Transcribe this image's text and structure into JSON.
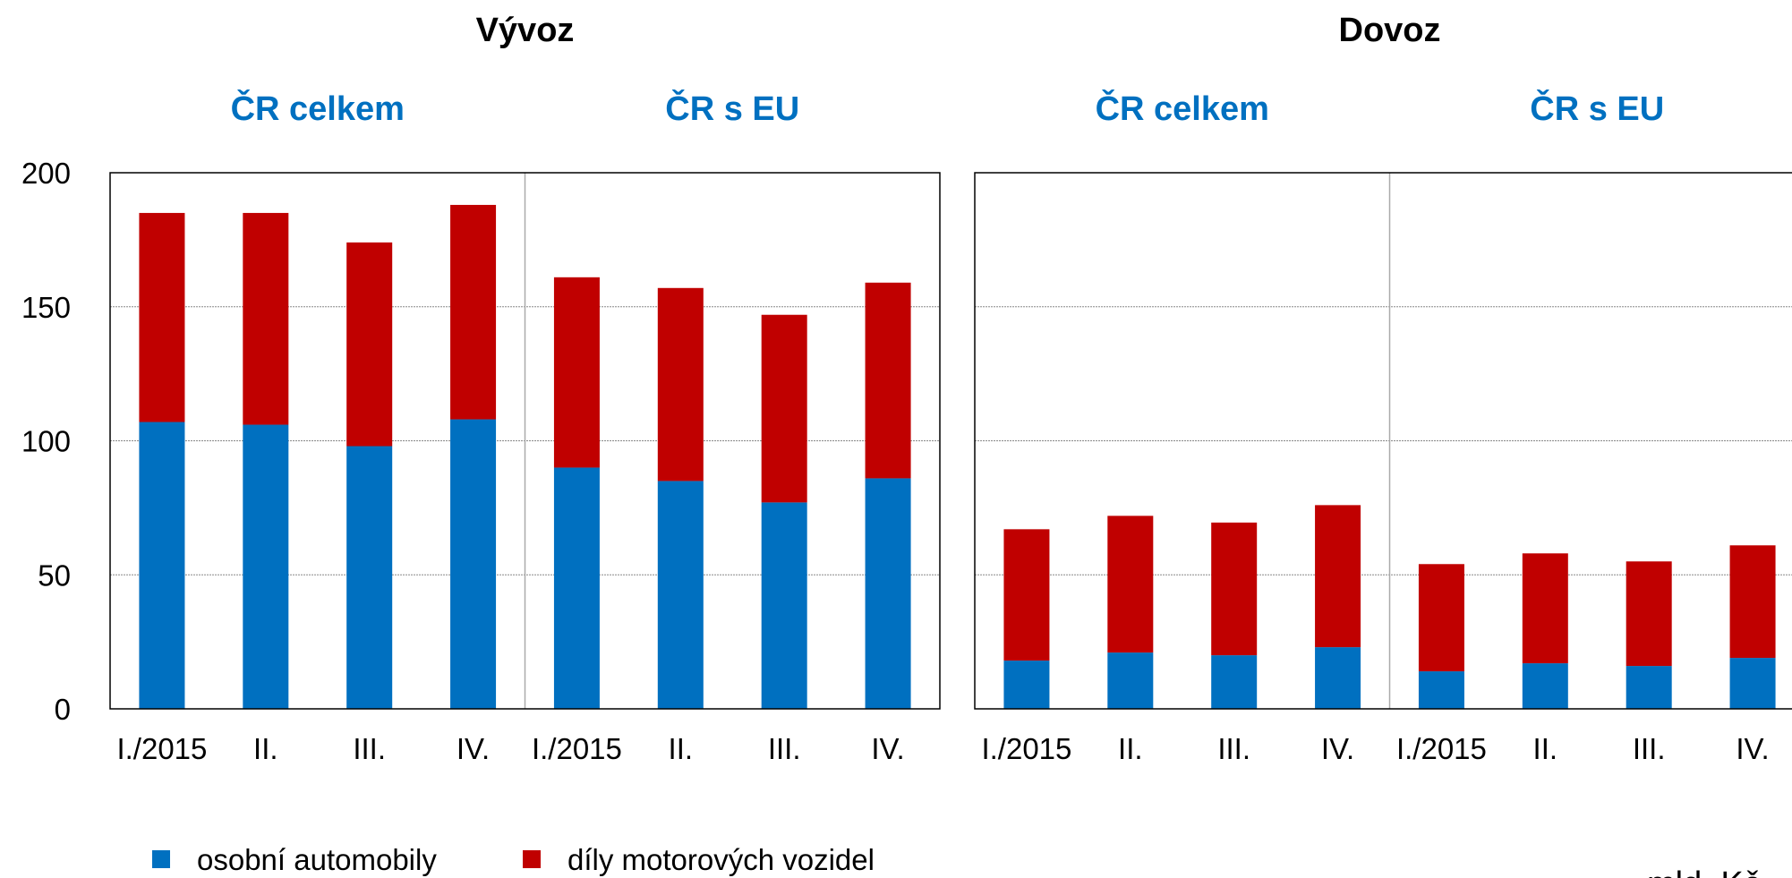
{
  "chart_data": [
    {
      "type": "bar",
      "stacked": true,
      "title": "Vývoz",
      "groups": [
        "ČR celkem",
        "ČR s EU"
      ],
      "categories": [
        "I./2015",
        "II.",
        "III.",
        "IV.",
        "I./2015",
        "II.",
        "III.",
        "IV."
      ],
      "series": [
        {
          "name": "osobní automobily",
          "color": "#0070c0",
          "values": [
            107,
            106,
            98,
            108,
            90,
            85,
            77,
            86
          ]
        },
        {
          "name": "díly motorových vozidel",
          "color": "#c00000",
          "values": [
            78,
            79,
            76,
            80,
            71,
            72,
            70,
            73
          ]
        }
      ],
      "ylim": [
        0,
        200
      ],
      "yticks": [
        0,
        50,
        100,
        150,
        200
      ],
      "grid": true
    },
    {
      "type": "bar",
      "stacked": true,
      "title": "Dovoz",
      "groups": [
        "ČR celkem",
        "ČR s EU"
      ],
      "categories": [
        "I./2015",
        "II.",
        "III.",
        "IV.",
        "I./2015",
        "II.",
        "III.",
        "IV."
      ],
      "series": [
        {
          "color": "#0070c0",
          "values": [
            18,
            21,
            20,
            23,
            14,
            17,
            16,
            19
          ]
        },
        {
          "color": "#c00000",
          "values": [
            49,
            51,
            49.5,
            53,
            40,
            41,
            39,
            42
          ]
        }
      ],
      "ylim": [
        0,
        200
      ],
      "yticks": [
        0,
        50,
        100,
        150,
        200
      ],
      "grid": true
    },
    {
      "unit": "mld. Kč"
    }
  ]
}
